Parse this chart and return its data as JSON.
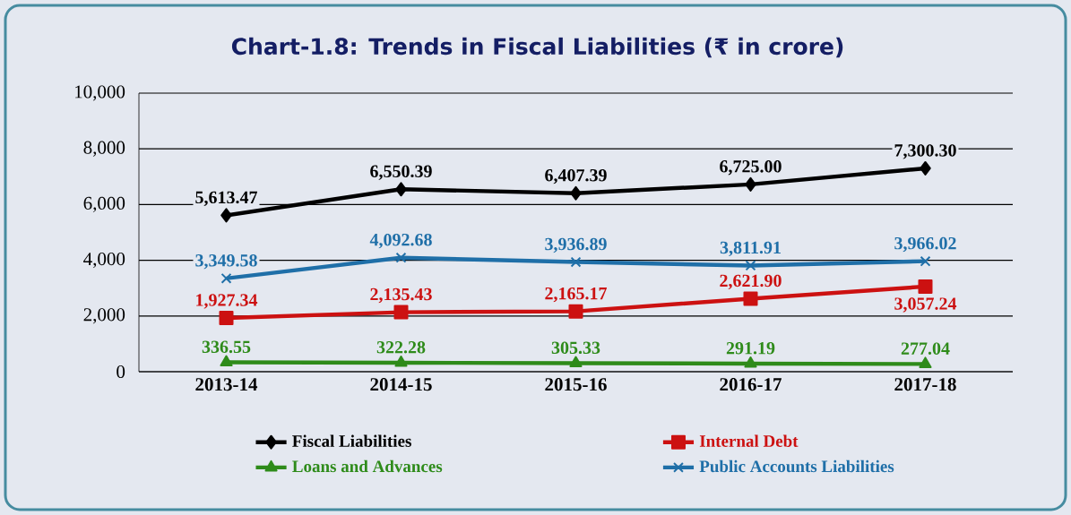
{
  "chart_data": {
    "type": "line",
    "title": "Chart-1.8: Trends in Fiscal Liabilities (₹ in crore)",
    "categories": [
      "2013-14",
      "2014-15",
      "2015-16",
      "2016-17",
      "2017-18"
    ],
    "series": [
      {
        "name": "Fiscal Liabilities",
        "color": "#000000",
        "marker": "diamond",
        "values": [
          5613.47,
          6550.39,
          6407.39,
          6725.0,
          7300.3
        ],
        "value_labels": [
          "5,613.47",
          "6,550.39",
          "6,407.39",
          "6,725.00",
          "7,300.30"
        ]
      },
      {
        "name": "Internal Debt",
        "color": "#cc1111",
        "marker": "square",
        "values": [
          1927.34,
          2135.43,
          2165.17,
          2621.9,
          3057.24
        ],
        "value_labels": [
          "1,927.34",
          "2,135.43",
          "2,165.17",
          "2,621.90",
          "3,057.24"
        ]
      },
      {
        "name": "Loans and Advances",
        "color": "#2e8b1a",
        "marker": "triangle",
        "values": [
          336.55,
          322.28,
          305.33,
          291.19,
          277.04
        ],
        "value_labels": [
          "336.55",
          "322.28",
          "305.33",
          "291.19",
          "277.04"
        ]
      },
      {
        "name": "Public Accounts Liabilities",
        "color": "#1f6fa8",
        "marker": "cross",
        "values": [
          3349.58,
          4092.68,
          3936.89,
          3811.91,
          3966.02
        ],
        "value_labels": [
          "3,349.58",
          "4,092.68",
          "3,936.89",
          "3,811.91",
          "3,966.02"
        ]
      }
    ],
    "ylim": [
      0,
      10000
    ],
    "yticks": [
      {
        "value": 0,
        "label": "0"
      },
      {
        "value": 2000,
        "label": "2,000"
      },
      {
        "value": 4000,
        "label": "4,000"
      },
      {
        "value": 6000,
        "label": "6,000"
      },
      {
        "value": 8000,
        "label": "8,000"
      },
      {
        "value": 10000,
        "label": "10,000"
      }
    ],
    "grid": "y",
    "legend": "bottom",
    "line_style": "solid"
  }
}
